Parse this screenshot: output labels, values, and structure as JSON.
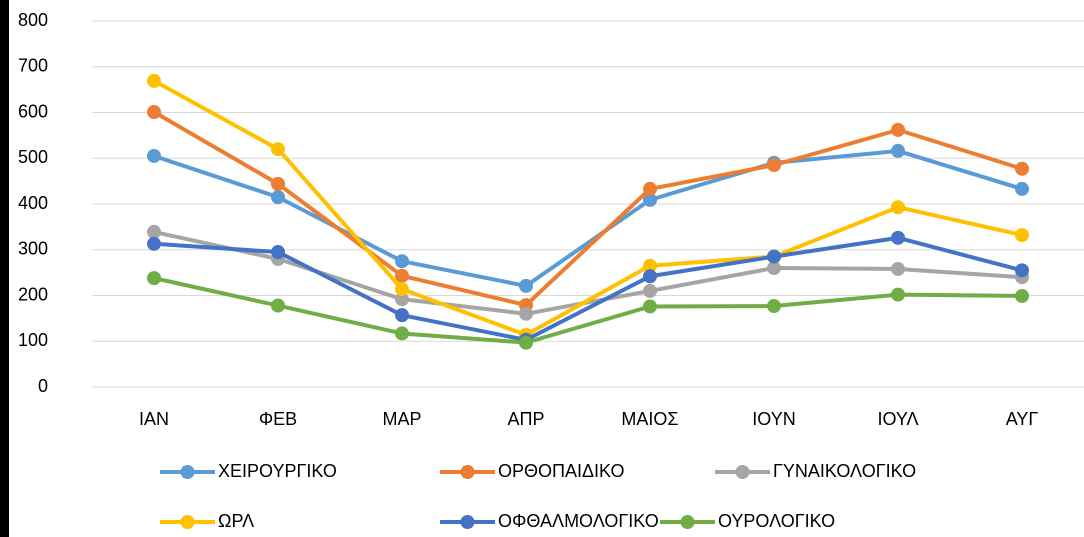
{
  "chart_data": {
    "type": "line",
    "categories": [
      "ΙΑΝ",
      "ΦΕΒ",
      "ΜΑΡ",
      "ΑΠΡ",
      "ΜΑΙΟΣ",
      "ΙΟΥΝ",
      "ΙΟΥΛ",
      "ΑΥΓ"
    ],
    "series": [
      {
        "name": "ΧΕΙΡΟΥΡΓΙΚΟ",
        "color": "#5b9bd5",
        "values": [
          505,
          415,
          275,
          221,
          409,
          490,
          516,
          433
        ]
      },
      {
        "name": "ΟΡΘΟΠΑΙΔΙΚΟ",
        "color": "#ed7d31",
        "values": [
          601,
          444,
          243,
          179,
          433,
          485,
          562,
          477
        ]
      },
      {
        "name": "ΓΥΝΑΙΚΟΛΟΓΙΚΟ",
        "color": "#a5a5a5",
        "values": [
          339,
          280,
          192,
          160,
          210,
          260,
          258,
          240
        ]
      },
      {
        "name": "ΩΡΛ",
        "color": "#ffc000",
        "values": [
          669,
          520,
          214,
          114,
          265,
          285,
          393,
          332
        ]
      },
      {
        "name": "ΟΦΘΑΛΜΟΛΟΓΙΚΟ",
        "color": "#4472c4",
        "values": [
          313,
          295,
          157,
          103,
          242,
          285,
          326,
          255
        ]
      },
      {
        "name": "ΟΥΡΟΛΟΓΙΚΟ",
        "color": "#70ad47",
        "values": [
          238,
          178,
          117,
          97,
          176,
          177,
          202,
          199
        ]
      }
    ],
    "ylim": [
      0,
      800
    ],
    "yticks": [
      0,
      100,
      200,
      300,
      400,
      500,
      600,
      700,
      800
    ],
    "grid": true,
    "legend": "bottom"
  }
}
